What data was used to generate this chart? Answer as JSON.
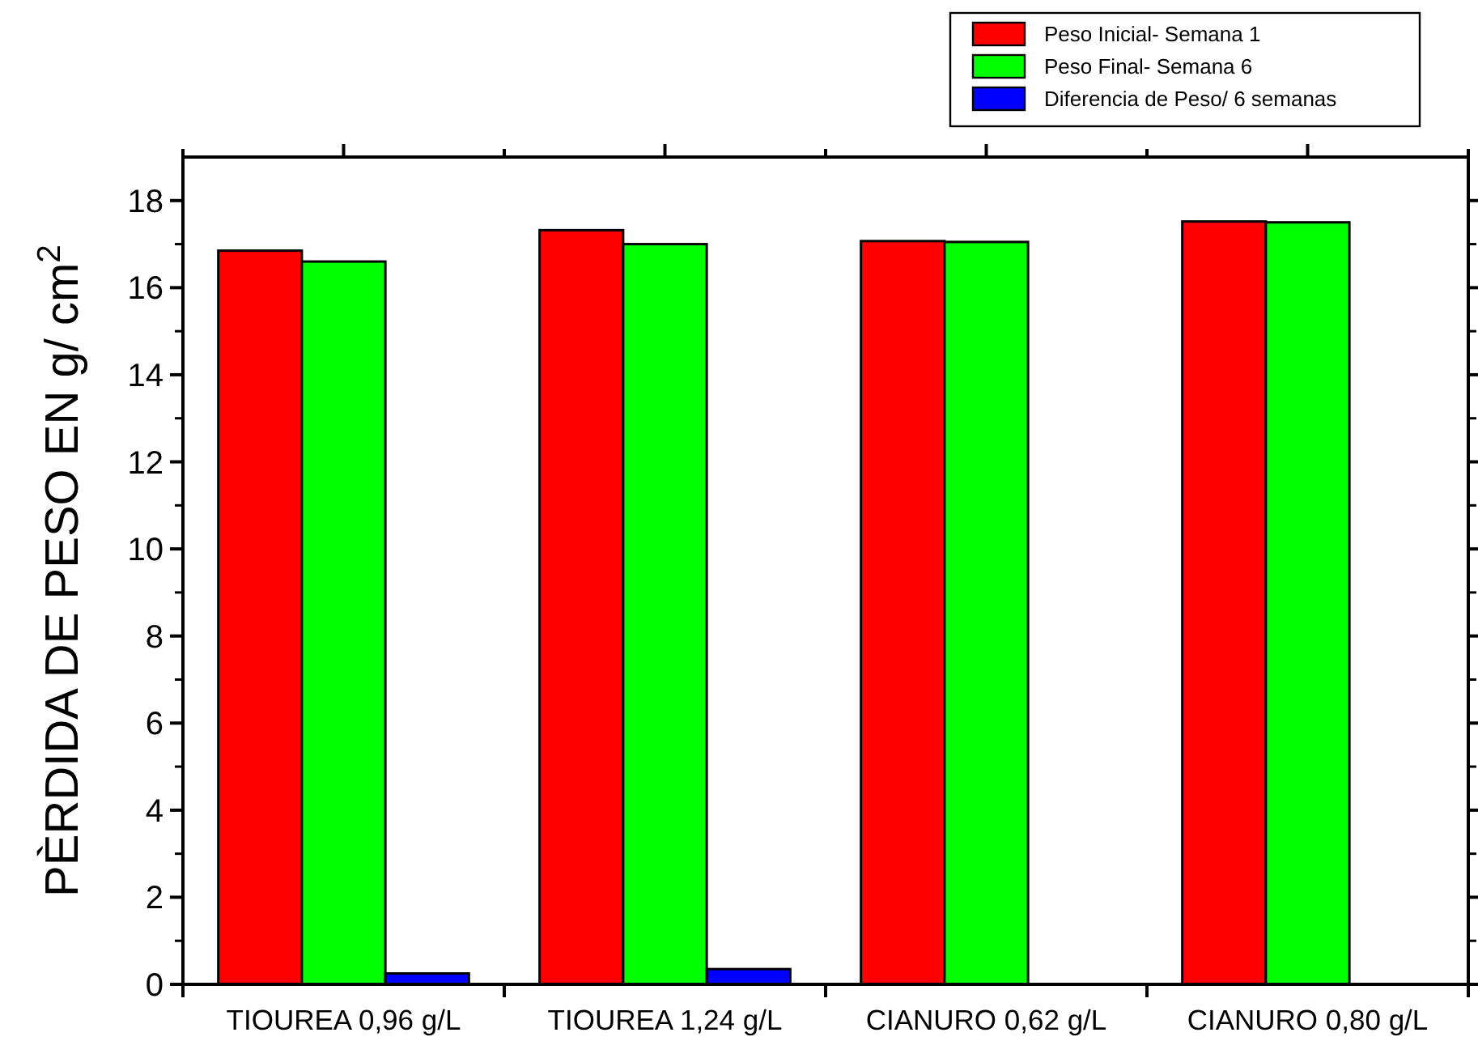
{
  "chart_data": {
    "type": "bar",
    "ylabel": "PÈRDIDA DE PESO EN g/ cm$^{2}$",
    "categories": [
      "TIOUREA 0,96 g/L",
      "TIOUREA  1,24 g/L",
      "CIANURO 0,62 g/L",
      "CIANURO 0,80 g/L"
    ],
    "series": [
      {
        "name": "Peso Inicial- Semana 1",
        "color": "#ff0000",
        "values": [
          16.85,
          17.32,
          17.07,
          17.52
        ]
      },
      {
        "name": "Peso Final- Semana 6",
        "color": "#00ff00",
        "values": [
          16.6,
          17.0,
          17.05,
          17.5
        ]
      },
      {
        "name": "Diferencia de Peso/ 6 semanas",
        "color": "#0000ff",
        "values": [
          0.25,
          0.35,
          0,
          0
        ]
      }
    ],
    "ylim": [
      0,
      19
    ],
    "yticks": [
      0,
      2,
      4,
      6,
      8,
      10,
      12,
      14,
      16,
      18
    ],
    "grid": false,
    "legend": "top right"
  }
}
